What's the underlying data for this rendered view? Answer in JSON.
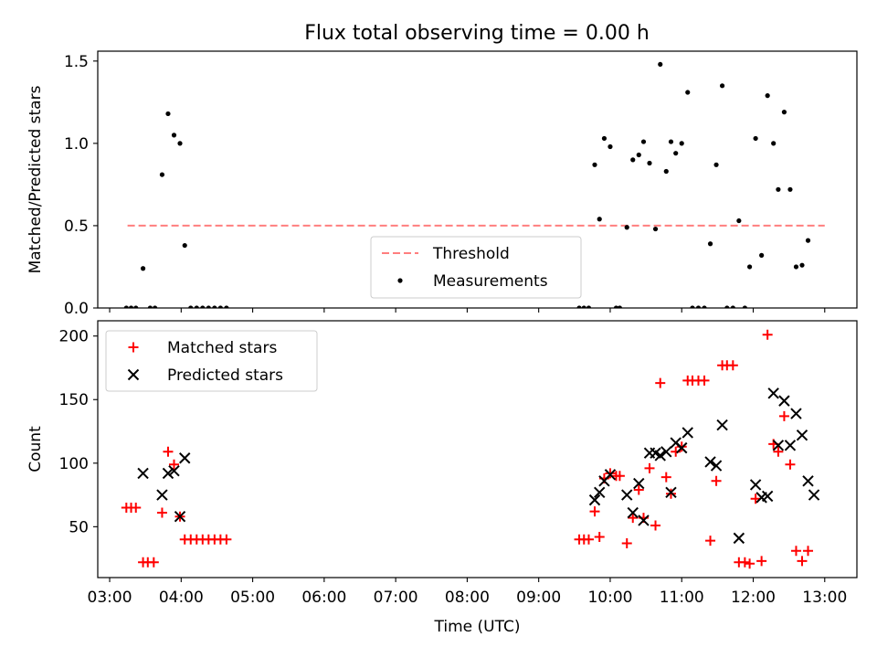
{
  "title": "Flux total observing time = 0.00 h",
  "colors": {
    "threshold": "#ff7f7f",
    "measurements": "#000000",
    "matched": "#ff0000",
    "predicted": "#000000"
  },
  "chart_data": [
    {
      "type": "scatter",
      "ylabel": "Matched/Predicted stars",
      "xlim": [
        "02:50",
        "13:27"
      ],
      "ylim": [
        0,
        1.56
      ],
      "yticks": [
        "0.0",
        "0.5",
        "1.0",
        "1.5"
      ],
      "ytick_values": [
        0,
        0.5,
        1.0,
        1.5
      ],
      "legend": {
        "position": "lower-center",
        "entries": [
          "Threshold",
          "Measurements"
        ]
      },
      "threshold": {
        "name": "Threshold",
        "x": [
          "03:15",
          "13:00"
        ],
        "value": 0.5,
        "style": "dashed"
      },
      "series": [
        {
          "name": "Measurements",
          "marker": "dot",
          "points": [
            [
              "03:14",
              0
            ],
            [
              "03:18",
              0
            ],
            [
              "03:22",
              0
            ],
            [
              "03:28",
              0.24
            ],
            [
              "03:34",
              0
            ],
            [
              "03:38",
              0
            ],
            [
              "03:44",
              0.81
            ],
            [
              "03:49",
              1.18
            ],
            [
              "03:54",
              1.05
            ],
            [
              "03:59",
              1.0
            ],
            [
              "04:03",
              0.38
            ],
            [
              "04:08",
              0
            ],
            [
              "04:13",
              0
            ],
            [
              "04:18",
              0
            ],
            [
              "04:23",
              0
            ],
            [
              "04:28",
              0
            ],
            [
              "04:33",
              0
            ],
            [
              "04:38",
              0
            ],
            [
              "09:34",
              0
            ],
            [
              "09:38",
              0
            ],
            [
              "09:42",
              0
            ],
            [
              "09:47",
              0.87
            ],
            [
              "09:51",
              0.54
            ],
            [
              "09:55",
              1.03
            ],
            [
              "10:00",
              0.98
            ],
            [
              "10:05",
              0
            ],
            [
              "10:08",
              0
            ],
            [
              "10:14",
              0.49
            ],
            [
              "10:19",
              0.9
            ],
            [
              "10:24",
              0.93
            ],
            [
              "10:28",
              1.01
            ],
            [
              "10:33",
              0.88
            ],
            [
              "10:38",
              0.48
            ],
            [
              "10:42",
              1.48
            ],
            [
              "10:47",
              0.83
            ],
            [
              "10:51",
              1.01
            ],
            [
              "10:55",
              0.94
            ],
            [
              "11:00",
              1.0
            ],
            [
              "11:05",
              1.31
            ],
            [
              "11:09",
              0
            ],
            [
              "11:14",
              0
            ],
            [
              "11:19",
              0
            ],
            [
              "11:24",
              0.39
            ],
            [
              "11:29",
              0.87
            ],
            [
              "11:34",
              1.35
            ],
            [
              "11:38",
              0
            ],
            [
              "11:43",
              0
            ],
            [
              "11:48",
              0.53
            ],
            [
              "11:53",
              0
            ],
            [
              "11:57",
              0.25
            ],
            [
              "12:02",
              1.03
            ],
            [
              "12:07",
              0.32
            ],
            [
              "12:12",
              1.29
            ],
            [
              "12:17",
              1.0
            ],
            [
              "12:21",
              0.72
            ],
            [
              "12:26",
              1.19
            ],
            [
              "12:31",
              0.72
            ],
            [
              "12:36",
              0.25
            ],
            [
              "12:41",
              0.26
            ],
            [
              "12:46",
              0.41
            ]
          ]
        }
      ]
    },
    {
      "type": "scatter",
      "ylabel": "Count",
      "xlabel": "Time (UTC)",
      "xlim": [
        "02:50",
        "13:27"
      ],
      "ylim": [
        10,
        212
      ],
      "yticks": [
        "50",
        "100",
        "150",
        "200"
      ],
      "ytick_values": [
        50,
        100,
        150,
        200
      ],
      "xticks": [
        "03:00",
        "04:00",
        "05:00",
        "06:00",
        "07:00",
        "08:00",
        "09:00",
        "10:00",
        "11:00",
        "12:00",
        "13:00"
      ],
      "legend": {
        "position": "upper-left",
        "entries": [
          "Matched stars",
          "Predicted stars"
        ]
      },
      "series": [
        {
          "name": "Matched stars",
          "marker": "plus",
          "points": [
            [
              "03:14",
              65
            ],
            [
              "03:18",
              65
            ],
            [
              "03:22",
              65
            ],
            [
              "03:28",
              22
            ],
            [
              "03:32",
              22
            ],
            [
              "03:37",
              22
            ],
            [
              "03:44",
              61
            ],
            [
              "03:49",
              109
            ],
            [
              "03:54",
              99
            ],
            [
              "03:59",
              58
            ],
            [
              "04:03",
              40
            ],
            [
              "04:08",
              40
            ],
            [
              "04:13",
              40
            ],
            [
              "04:18",
              40
            ],
            [
              "04:23",
              40
            ],
            [
              "04:28",
              40
            ],
            [
              "04:33",
              40
            ],
            [
              "04:38",
              40
            ],
            [
              "09:34",
              40
            ],
            [
              "09:38",
              40
            ],
            [
              "09:42",
              40
            ],
            [
              "09:47",
              62
            ],
            [
              "09:51",
              42
            ],
            [
              "09:55",
              88
            ],
            [
              "10:00",
              92
            ],
            [
              "10:05",
              90
            ],
            [
              "10:08",
              90
            ],
            [
              "10:14",
              37
            ],
            [
              "10:19",
              57
            ],
            [
              "10:24",
              79
            ],
            [
              "10:28",
              57
            ],
            [
              "10:33",
              96
            ],
            [
              "10:38",
              51
            ],
            [
              "10:42",
              163
            ],
            [
              "10:47",
              89
            ],
            [
              "10:51",
              76
            ],
            [
              "10:55",
              109
            ],
            [
              "11:00",
              113
            ],
            [
              "11:05",
              165
            ],
            [
              "11:09",
              165
            ],
            [
              "11:14",
              165
            ],
            [
              "11:19",
              165
            ],
            [
              "11:24",
              39
            ],
            [
              "11:29",
              86
            ],
            [
              "11:34",
              177
            ],
            [
              "11:38",
              177
            ],
            [
              "11:43",
              177
            ],
            [
              "11:48",
              22
            ],
            [
              "11:53",
              22
            ],
            [
              "11:57",
              21
            ],
            [
              "12:02",
              72
            ],
            [
              "12:07",
              23
            ],
            [
              "12:12",
              201
            ],
            [
              "12:17",
              115
            ],
            [
              "12:21",
              109
            ],
            [
              "12:26",
              137
            ],
            [
              "12:31",
              99
            ],
            [
              "12:36",
              31
            ],
            [
              "12:41",
              23
            ],
            [
              "12:46",
              31
            ]
          ]
        },
        {
          "name": "Predicted stars",
          "marker": "x",
          "points": [
            [
              "03:28",
              92
            ],
            [
              "03:44",
              75
            ],
            [
              "03:49",
              92
            ],
            [
              "03:54",
              94
            ],
            [
              "03:59",
              58
            ],
            [
              "04:03",
              104
            ],
            [
              "09:47",
              71
            ],
            [
              "09:51",
              77
            ],
            [
              "09:55",
              86
            ],
            [
              "10:00",
              91
            ],
            [
              "10:14",
              75
            ],
            [
              "10:19",
              61
            ],
            [
              "10:24",
              84
            ],
            [
              "10:28",
              55
            ],
            [
              "10:33",
              108
            ],
            [
              "10:38",
              108
            ],
            [
              "10:42",
              106
            ],
            [
              "10:47",
              109
            ],
            [
              "10:51",
              77
            ],
            [
              "10:55",
              116
            ],
            [
              "11:00",
              112
            ],
            [
              "11:05",
              124
            ],
            [
              "11:24",
              101
            ],
            [
              "11:29",
              98
            ],
            [
              "11:34",
              130
            ],
            [
              "11:48",
              41
            ],
            [
              "12:02",
              83
            ],
            [
              "12:07",
              73
            ],
            [
              "12:12",
              74
            ],
            [
              "12:17",
              155
            ],
            [
              "12:21",
              114
            ],
            [
              "12:26",
              149
            ],
            [
              "12:31",
              114
            ],
            [
              "12:36",
              139
            ],
            [
              "12:41",
              122
            ],
            [
              "12:46",
              86
            ],
            [
              "12:51",
              75
            ]
          ]
        }
      ]
    }
  ]
}
